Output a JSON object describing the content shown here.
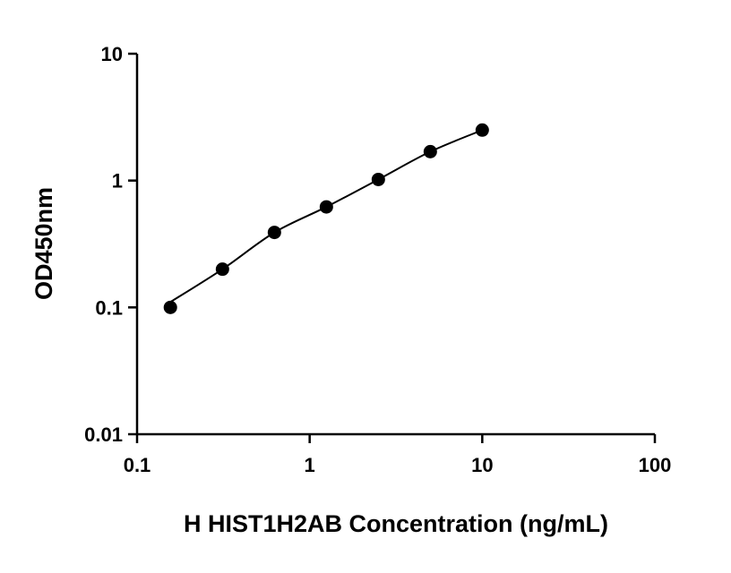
{
  "chart_data": {
    "type": "scatter",
    "xlabel": "H HIST1H2AB Concentration (ng/mL)",
    "ylabel": "OD450nm",
    "x_scale": "log",
    "y_scale": "log",
    "xlim": [
      0.1,
      100
    ],
    "ylim": [
      0.01,
      10
    ],
    "x_ticks": [
      "0.1",
      "1",
      "10",
      "100"
    ],
    "y_ticks": [
      "0.01",
      "0.1",
      "1",
      "10"
    ],
    "grid": false,
    "fit_line": true,
    "series": [
      {
        "x": [
          0.156,
          0.3125,
          0.625,
          1.25,
          2.5,
          5,
          10
        ],
        "y": [
          0.1,
          0.2,
          0.39,
          0.62,
          1.02,
          1.69,
          2.5
        ]
      }
    ],
    "colors": {
      "points": "#000000",
      "line": "#000000"
    }
  }
}
